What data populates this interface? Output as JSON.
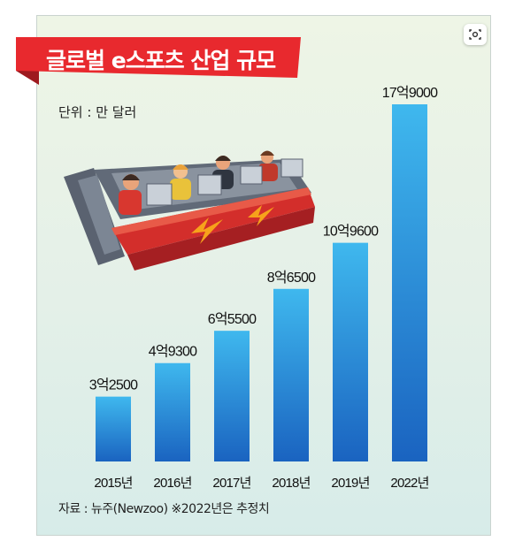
{
  "title": "글로벌 e스포츠 산업 규모",
  "unit_label": "단위 : 만 달러",
  "source_label": "자료 : 뉴주(Newzoo) ※2022년은 추정치",
  "colors": {
    "title_red": "#e8292e",
    "title_shadow": "#9e1a1f",
    "bar_top": "#3fb8ee",
    "bar_bottom": "#1a63c0",
    "background": "#e6f1e7"
  },
  "chart_data": {
    "type": "bar",
    "title": "글로벌 e스포츠 산업 규모",
    "unit": "단위 : 만 달러",
    "categories": [
      "2015년",
      "2016년",
      "2017년",
      "2018년",
      "2019년",
      "2022년"
    ],
    "values": [
      32500,
      49300,
      65500,
      86500,
      109600,
      179000
    ],
    "value_labels": [
      "3억2500",
      "4억9300",
      "6억5500",
      "8억6500",
      "10억9600",
      "17억9000"
    ],
    "ylim": [
      0,
      179000
    ],
    "grid": false,
    "legend": "none"
  }
}
